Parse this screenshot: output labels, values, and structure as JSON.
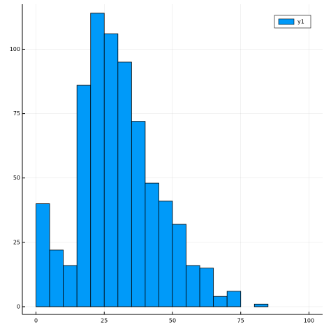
{
  "chart_data": {
    "type": "histogram",
    "bins": [
      0,
      5,
      10,
      15,
      20,
      25,
      30,
      35,
      40,
      45,
      50,
      55,
      60,
      65,
      70,
      75,
      80,
      85,
      90,
      95,
      100
    ],
    "series": [
      {
        "name": "y1",
        "color": "#009af9",
        "values": [
          40,
          22,
          16,
          86,
          114,
          106,
          95,
          72,
          48,
          41,
          32,
          16,
          15,
          4,
          6,
          0,
          1,
          0,
          0,
          0
        ]
      }
    ],
    "xlim": [
      -5,
      105
    ],
    "ylim": [
      -3,
      117.5
    ],
    "xticks": [
      0,
      25,
      50,
      75,
      100
    ],
    "yticks": [
      0,
      25,
      50,
      75,
      100
    ],
    "grid": true,
    "legend": "top-right"
  }
}
